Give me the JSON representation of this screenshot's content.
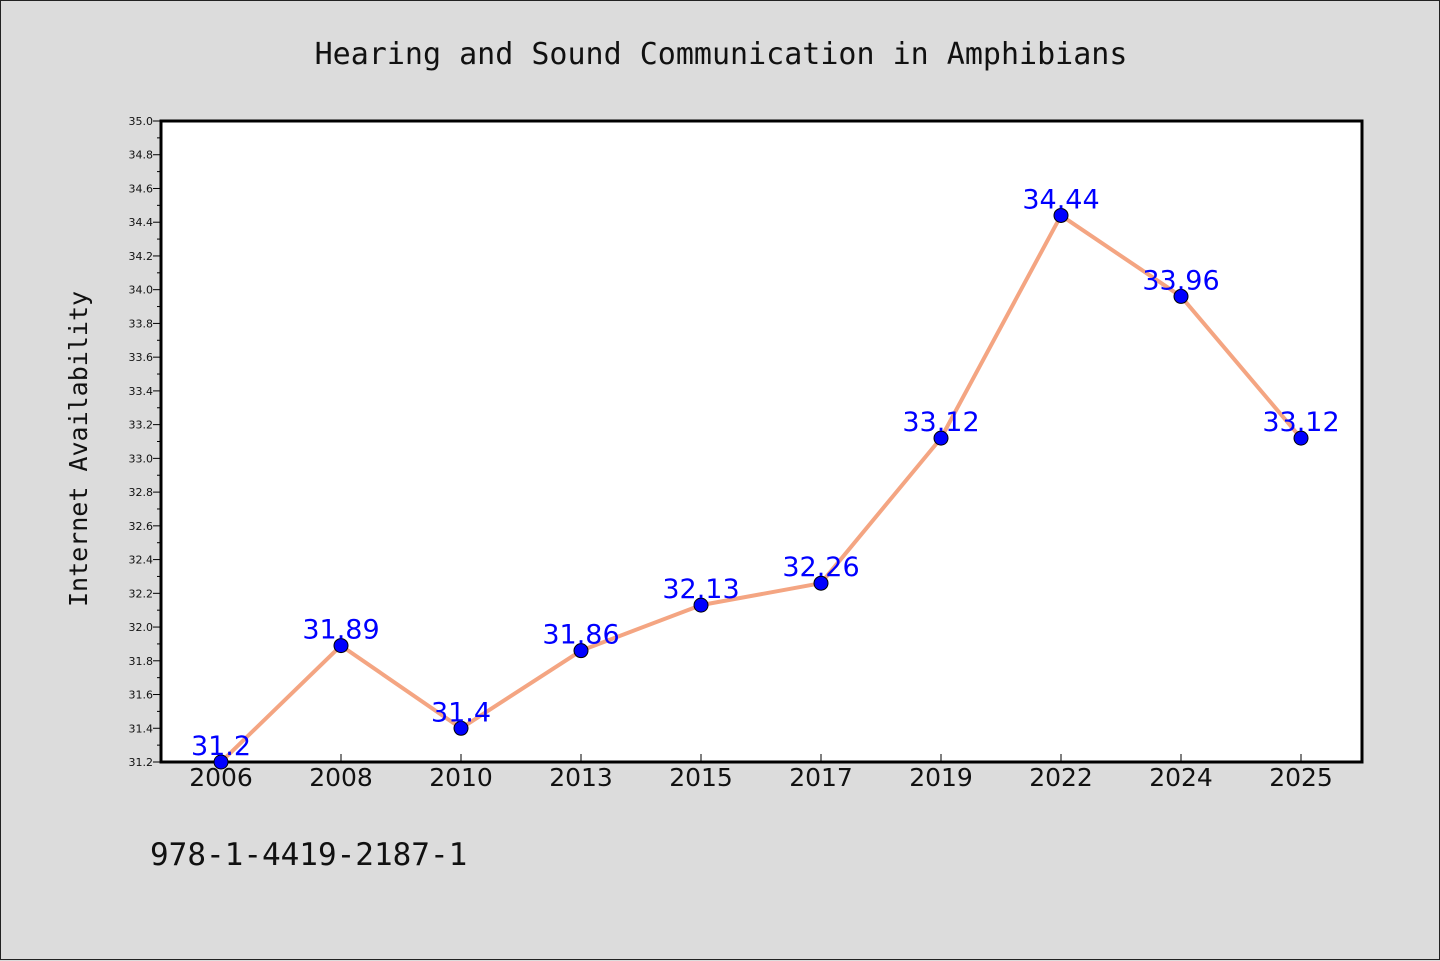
{
  "chart_data": {
    "type": "line",
    "title": "Hearing and Sound Communication in Amphibians",
    "xlabel": "",
    "ylabel": "Internet Availability",
    "categories": [
      "2006",
      "2008",
      "2010",
      "2013",
      "2015",
      "2017",
      "2019",
      "2022",
      "2024",
      "2025"
    ],
    "series": [
      {
        "values": [
          31.2,
          31.89,
          31.4,
          31.86,
          32.13,
          32.26,
          33.12,
          34.44,
          33.96,
          33.12
        ],
        "labels": [
          "31.2",
          "31.89",
          "31.4",
          "31.86",
          "32.13",
          "32.26",
          "33.12",
          "34.44",
          "33.96",
          "33.12"
        ],
        "line_color": "#f4a582",
        "marker_color": "#0000ff"
      }
    ],
    "ylim": [
      31.2,
      35.0
    ],
    "yticks": [
      "31.2",
      "31.4",
      "31.6",
      "31.8",
      "32.0",
      "32.2",
      "32.4",
      "32.6",
      "32.8",
      "33.0",
      "33.2",
      "33.4",
      "33.6",
      "33.8",
      "34.0",
      "34.2",
      "34.4",
      "34.6",
      "34.8",
      "35.0"
    ],
    "grid": false,
    "legend": "none",
    "label_color": "#0000ff"
  },
  "footer_text": "978-1-4419-2187-1"
}
